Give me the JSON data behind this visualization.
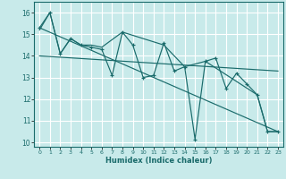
{
  "title": "",
  "xlabel": "Humidex (Indice chaleur)",
  "background_color": "#c8eaea",
  "grid_color": "#ffffff",
  "line_color": "#1a6b6b",
  "xlim": [
    -0.5,
    23.5
  ],
  "ylim": [
    9.8,
    16.5
  ],
  "yticks": [
    10,
    11,
    12,
    13,
    14,
    15,
    16
  ],
  "xticks": [
    0,
    1,
    2,
    3,
    4,
    5,
    6,
    7,
    8,
    9,
    10,
    11,
    12,
    13,
    14,
    15,
    16,
    17,
    18,
    19,
    20,
    21,
    22,
    23
  ],
  "series1_x": [
    0,
    1,
    2,
    3,
    4,
    5,
    6,
    7,
    8,
    9,
    10,
    11,
    12,
    13,
    14,
    15,
    16,
    17,
    18,
    19,
    20,
    21,
    22,
    23
  ],
  "series1_y": [
    15.3,
    16.0,
    14.1,
    14.8,
    14.5,
    14.4,
    14.3,
    13.1,
    15.1,
    14.5,
    13.0,
    13.1,
    14.6,
    13.3,
    13.5,
    10.15,
    13.75,
    13.9,
    12.5,
    13.2,
    12.7,
    12.2,
    10.5,
    10.5
  ],
  "series2_x": [
    0,
    23
  ],
  "series2_y": [
    15.3,
    10.5
  ],
  "series3_x": [
    0,
    1,
    2,
    3,
    4,
    5,
    6,
    8,
    12,
    14,
    16,
    21,
    22,
    23
  ],
  "series3_y": [
    15.2,
    16.0,
    14.1,
    14.8,
    14.5,
    14.5,
    14.4,
    15.1,
    14.5,
    13.5,
    13.75,
    12.2,
    10.5,
    10.5
  ],
  "series4_x": [
    0,
    23
  ],
  "series4_y": [
    14.0,
    13.3
  ]
}
